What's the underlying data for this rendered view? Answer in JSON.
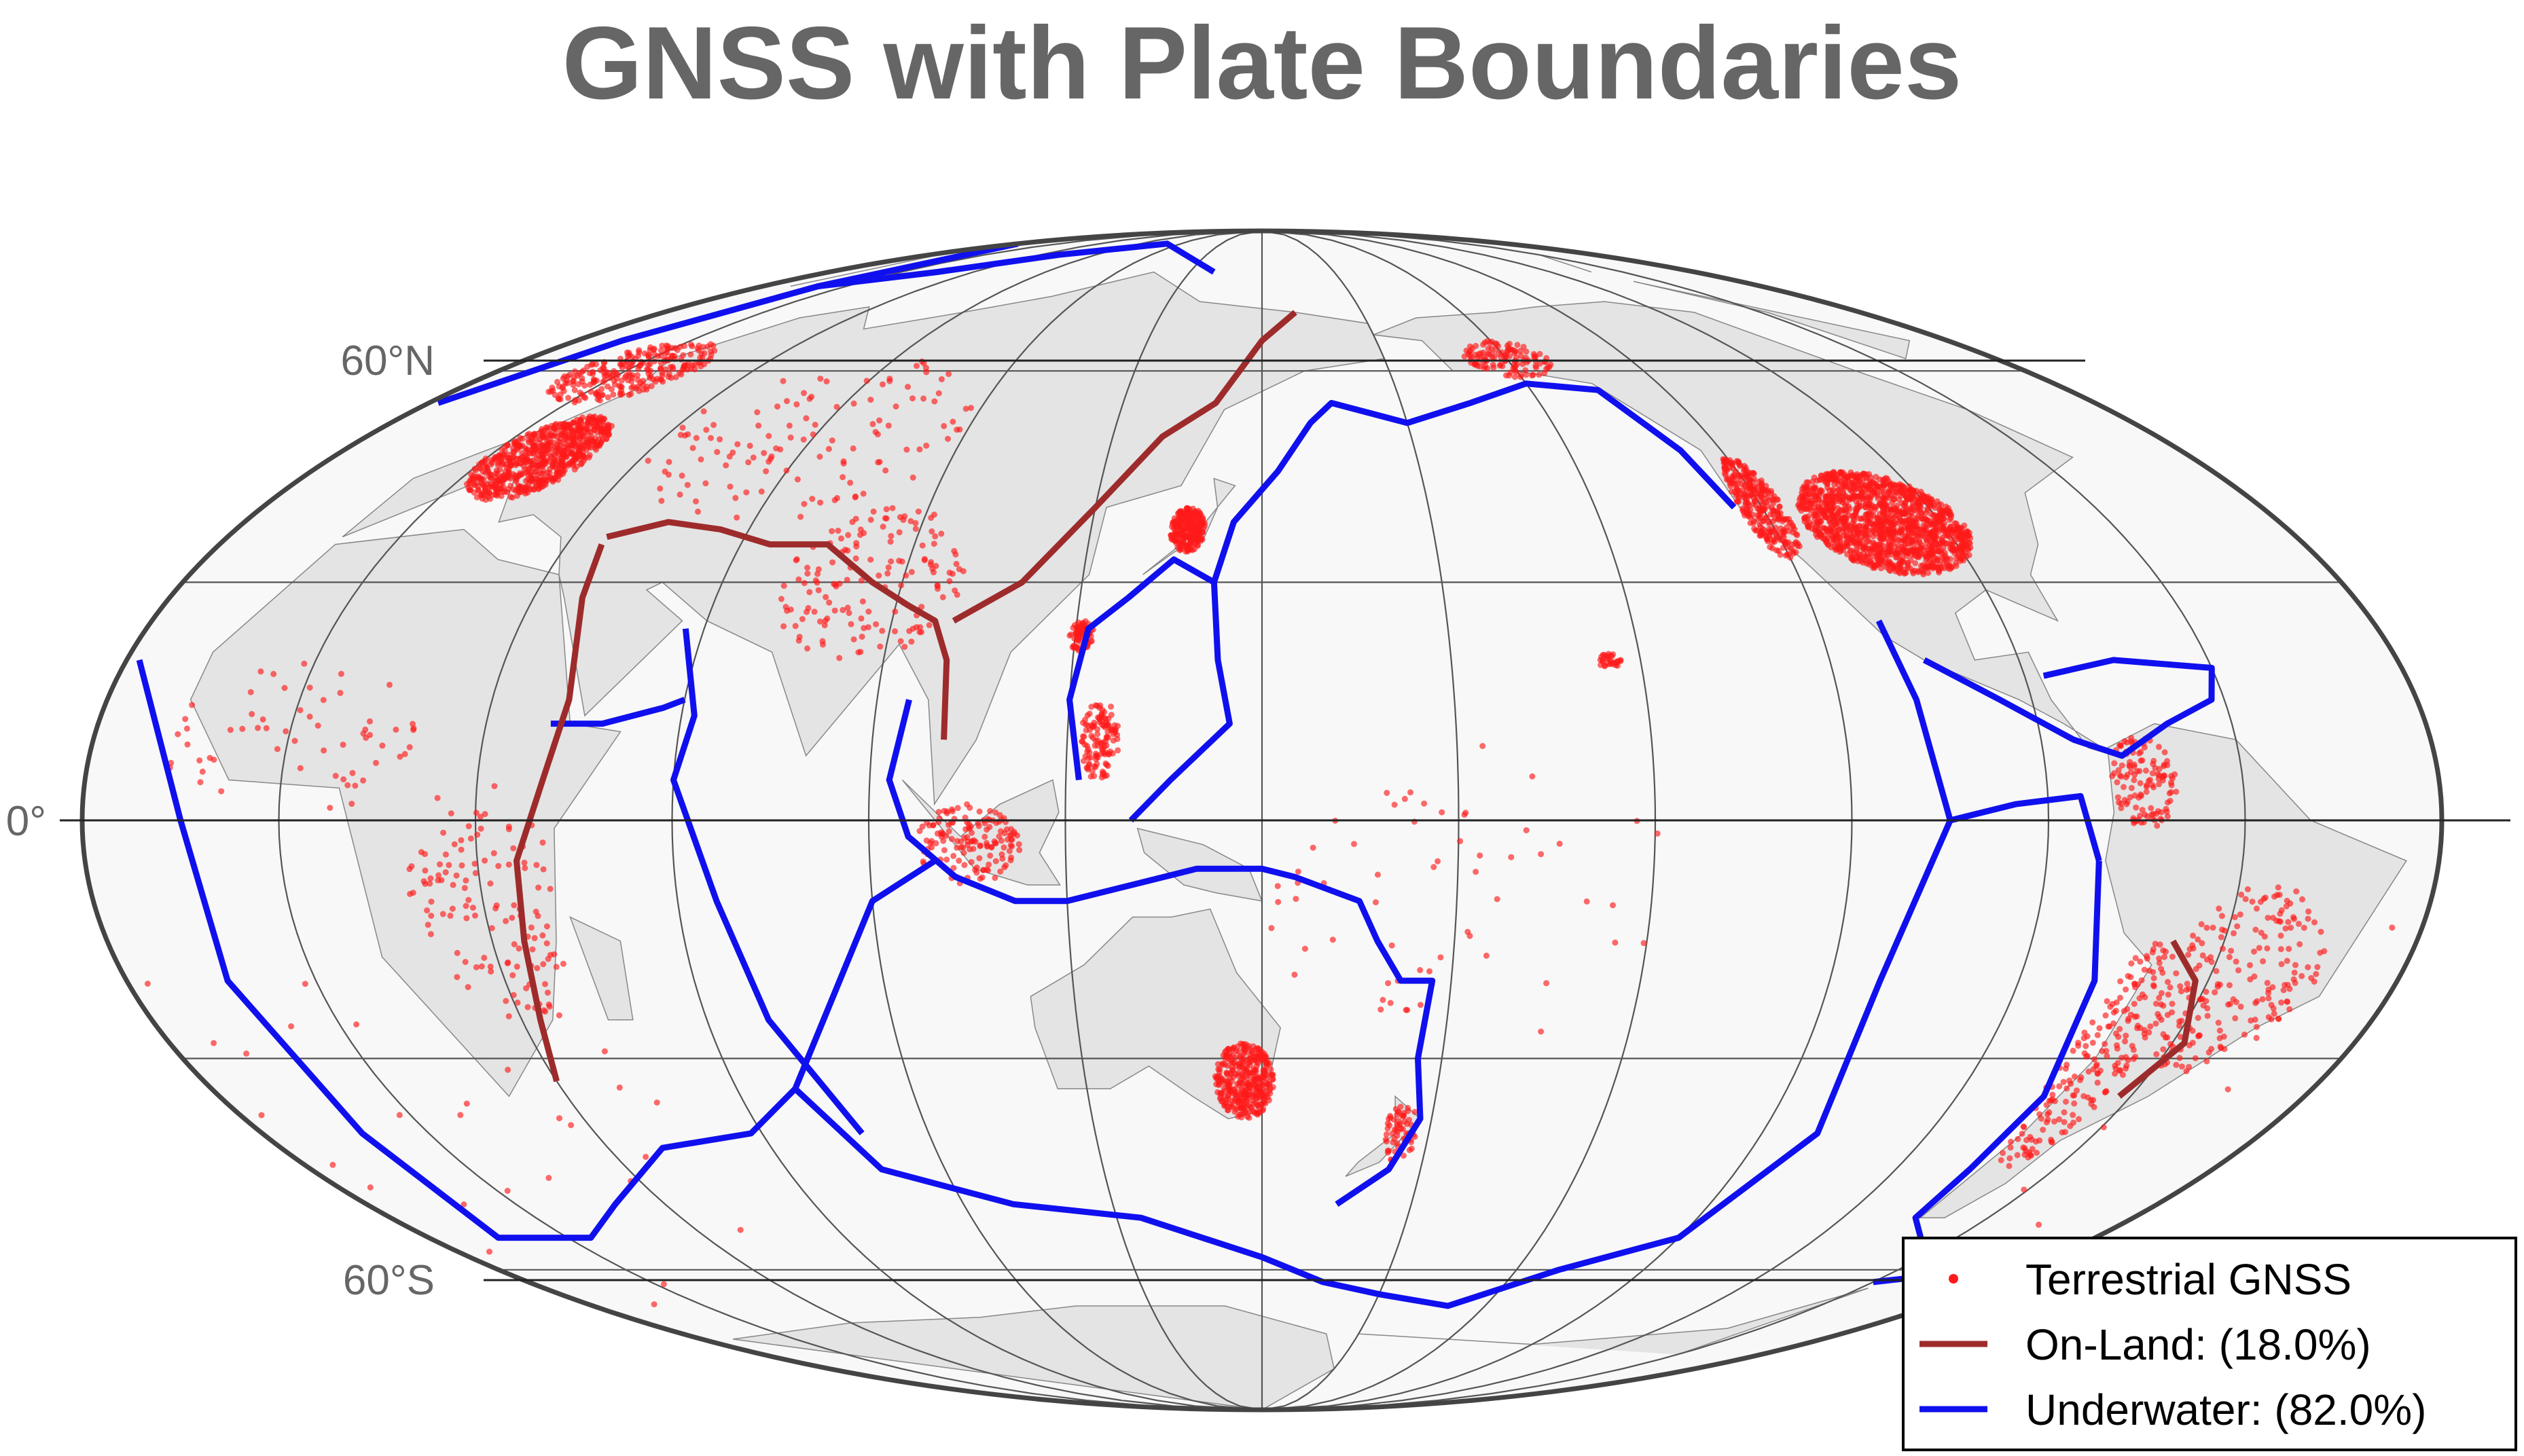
{
  "title": "GNSS with Plate Boundaries",
  "map": {
    "projection": "mollweide",
    "central_meridian": 150,
    "graticule_step_deg": 30,
    "latitude_labels": [
      {
        "lat": 60,
        "text": "60°N"
      },
      {
        "lat": 0,
        "text": "0°"
      },
      {
        "lat": -60,
        "text": "60°S"
      }
    ],
    "colors": {
      "stations": "#ff1a1a",
      "on_land": "#9e2b2b",
      "underwater": "#1010ee",
      "land_fill": "#e4e4e4",
      "ocean_fill": "#f8f8f8",
      "frame": "#444444"
    }
  },
  "legend": {
    "placement": "bottom-right",
    "items": [
      {
        "label": "Terrestrial GNSS",
        "color": "#ff1a1a",
        "kind": "dot"
      },
      {
        "label": "On-Land: (18.0%)",
        "color": "#9e2b2b",
        "kind": "line"
      },
      {
        "label": "Underwater: (82.0%)",
        "color": "#1010ee",
        "kind": "line"
      }
    ]
  }
}
